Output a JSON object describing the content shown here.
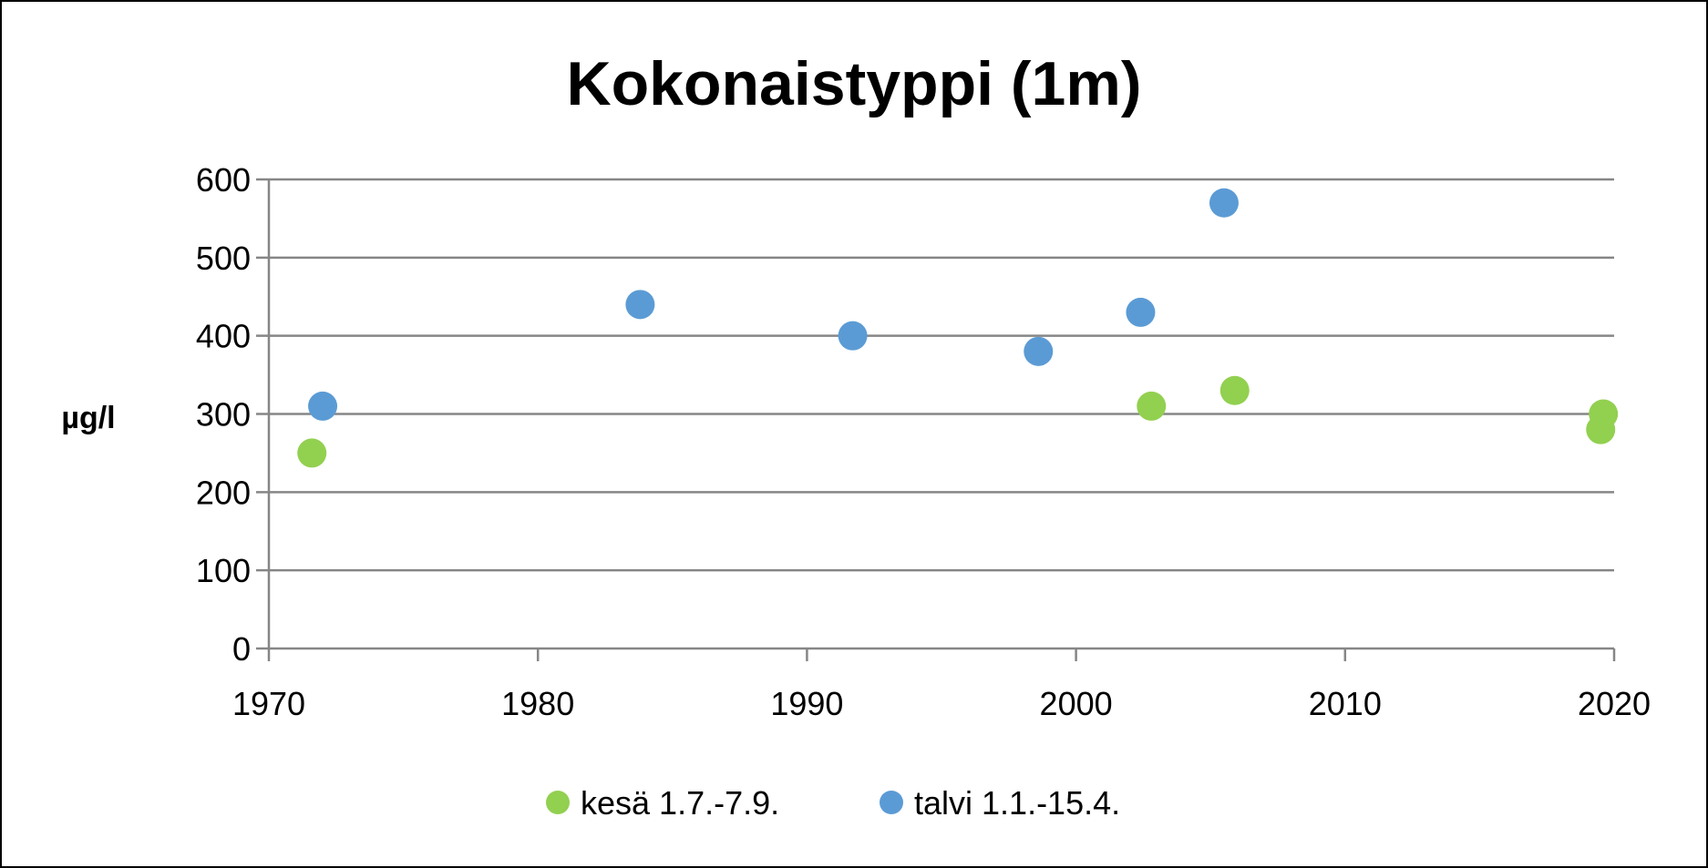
{
  "chart_data": {
    "type": "scatter",
    "title": "Kokonaistyppi (1m)",
    "xlabel": "",
    "ylabel": "µg/l",
    "xlim": [
      1970,
      2020
    ],
    "ylim": [
      0,
      600
    ],
    "x_ticks": [
      "1970",
      "1980",
      "1990",
      "2000",
      "2010",
      "2020"
    ],
    "y_ticks": [
      "0",
      "100",
      "200",
      "300",
      "400",
      "500",
      "600"
    ],
    "grid": "horizontal",
    "legend_position": "bottom",
    "series": [
      {
        "name": "kesä 1.7.-7.9.",
        "color": "#92d050",
        "points": [
          [
            1971.6,
            250
          ],
          [
            2002.8,
            310
          ],
          [
            2005.9,
            330
          ],
          [
            2019.6,
            300
          ],
          [
            2019.5,
            280
          ]
        ]
      },
      {
        "name": "talvi 1.1.-15.4.",
        "color": "#5b9bd5",
        "points": [
          [
            1972.0,
            310
          ],
          [
            1983.8,
            440
          ],
          [
            1991.7,
            400
          ],
          [
            1998.6,
            380
          ],
          [
            2002.4,
            430
          ],
          [
            2005.5,
            570
          ]
        ]
      }
    ]
  }
}
